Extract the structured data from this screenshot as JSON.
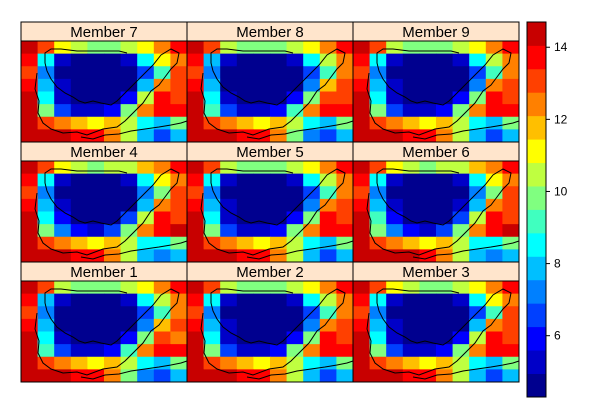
{
  "chart_data": {
    "type": "heatmap",
    "panel_titles": [
      "Member 7",
      "Member 8",
      "Member 9",
      "Member 4",
      "Member 5",
      "Member 6",
      "Member 1",
      "Member 2",
      "Member 3"
    ],
    "layout": {
      "rows": 3,
      "cols": 3
    },
    "grid_size": {
      "cols": 10,
      "rows": 8
    },
    "colorbar": {
      "min": 4.3,
      "max": 14.7,
      "step": 0.65,
      "ticks": [
        6,
        8,
        10,
        12,
        14
      ],
      "tick_labels": [
        "6",
        "8",
        "10",
        "12",
        "14"
      ],
      "colors": [
        "#00008F",
        "#0000C8",
        "#0000FF",
        "#0040FF",
        "#0080FF",
        "#00BFFF",
        "#00FFFF",
        "#40FFBF",
        "#80FF80",
        "#BFFF40",
        "#FFFF00",
        "#FFBF00",
        "#FF8000",
        "#FF4000",
        "#FF0000",
        "#C80000",
        "#800000"
      ]
    },
    "panel_values": [
      [
        [
          14.6,
          13.2,
          10.8,
          10.2,
          10.0,
          10.1,
          10.6,
          11.4,
          12.6,
          13.6
        ],
        [
          13.8,
          8.4,
          5.2,
          4.5,
          4.4,
          4.5,
          5.2,
          8.6,
          10.8,
          12.6
        ],
        [
          13.2,
          7.2,
          4.6,
          4.3,
          4.3,
          4.4,
          4.6,
          6.8,
          9.4,
          12.8
        ],
        [
          13.6,
          8.0,
          5.0,
          4.4,
          4.3,
          4.3,
          4.9,
          7.6,
          12.2,
          13.2
        ],
        [
          14.2,
          8.8,
          5.6,
          4.6,
          4.4,
          4.5,
          6.2,
          10.2,
          13.4,
          12.8
        ],
        [
          14.4,
          9.6,
          6.8,
          5.6,
          5.2,
          6.2,
          9.6,
          12.6,
          13.8,
          14.0
        ],
        [
          14.6,
          13.0,
          12.2,
          11.6,
          11.2,
          11.8,
          10.6,
          8.4,
          8.2,
          9.8
        ],
        [
          14.6,
          14.4,
          14.2,
          14.0,
          13.6,
          12.4,
          10.2,
          7.6,
          6.8,
          7.8
        ]
      ],
      [
        [
          14.6,
          13.0,
          10.6,
          10.0,
          9.9,
          10.0,
          10.5,
          11.3,
          12.5,
          13.5
        ],
        [
          13.8,
          8.2,
          5.0,
          4.5,
          4.4,
          4.5,
          5.1,
          8.4,
          10.6,
          12.5
        ],
        [
          13.2,
          7.0,
          4.5,
          4.3,
          4.3,
          4.4,
          4.6,
          6.6,
          9.2,
          12.6
        ],
        [
          13.6,
          7.8,
          4.9,
          4.4,
          4.3,
          4.3,
          4.8,
          7.4,
          12.0,
          13.1
        ],
        [
          14.1,
          8.6,
          5.5,
          4.6,
          4.4,
          4.5,
          6.0,
          10.0,
          13.3,
          12.8
        ],
        [
          14.4,
          9.4,
          6.6,
          5.5,
          5.1,
          6.0,
          9.4,
          12.5,
          13.7,
          13.9
        ],
        [
          14.6,
          12.9,
          12.1,
          11.5,
          11.1,
          11.7,
          10.5,
          8.3,
          8.1,
          9.7
        ],
        [
          14.6,
          14.4,
          14.1,
          13.9,
          13.5,
          12.3,
          10.1,
          7.5,
          6.7,
          7.7
        ]
      ],
      [
        [
          14.6,
          13.1,
          10.7,
          10.1,
          10.0,
          10.1,
          10.6,
          11.4,
          12.6,
          13.6
        ],
        [
          13.8,
          8.3,
          5.1,
          4.5,
          4.4,
          4.5,
          5.2,
          8.5,
          10.7,
          12.6
        ],
        [
          13.2,
          7.1,
          4.6,
          4.3,
          4.3,
          4.4,
          4.6,
          6.7,
          9.3,
          12.7
        ],
        [
          13.6,
          7.9,
          5.0,
          4.4,
          4.3,
          4.3,
          4.9,
          7.5,
          12.1,
          13.2
        ],
        [
          14.2,
          8.7,
          5.6,
          4.6,
          4.4,
          4.5,
          6.1,
          10.1,
          13.4,
          12.8
        ],
        [
          14.4,
          9.5,
          6.7,
          5.6,
          5.2,
          6.1,
          9.5,
          12.6,
          13.8,
          14.0
        ],
        [
          14.6,
          13.0,
          12.2,
          11.6,
          11.2,
          11.8,
          10.6,
          8.4,
          8.2,
          9.8
        ],
        [
          14.6,
          14.4,
          14.2,
          14.0,
          13.6,
          12.4,
          10.2,
          7.6,
          6.8,
          7.8
        ]
      ],
      [
        [
          14.6,
          13.2,
          10.8,
          10.2,
          10.1,
          10.2,
          10.7,
          11.5,
          12.7,
          13.6
        ],
        [
          13.8,
          8.4,
          5.2,
          4.5,
          4.4,
          4.5,
          5.3,
          8.7,
          10.9,
          12.7
        ],
        [
          13.3,
          7.2,
          4.6,
          4.3,
          4.3,
          4.4,
          4.7,
          6.9,
          9.5,
          12.8
        ],
        [
          13.7,
          8.0,
          5.0,
          4.4,
          4.3,
          4.3,
          4.9,
          7.7,
          12.3,
          13.3
        ],
        [
          14.2,
          8.8,
          5.7,
          4.6,
          4.4,
          4.5,
          6.3,
          10.3,
          13.5,
          12.9
        ],
        [
          14.5,
          9.7,
          6.9,
          5.7,
          5.3,
          6.3,
          9.7,
          12.7,
          13.9,
          14.1
        ],
        [
          14.6,
          13.1,
          12.3,
          11.7,
          11.3,
          11.9,
          10.7,
          8.5,
          8.3,
          9.9
        ],
        [
          14.6,
          14.5,
          14.2,
          14.0,
          13.7,
          12.5,
          10.3,
          7.7,
          6.9,
          7.9
        ]
      ],
      [
        [
          14.6,
          13.1,
          10.7,
          10.1,
          10.0,
          10.1,
          10.6,
          11.4,
          12.6,
          13.6
        ],
        [
          13.8,
          8.3,
          5.1,
          4.5,
          4.4,
          4.5,
          5.2,
          8.5,
          10.7,
          12.6
        ],
        [
          13.2,
          7.1,
          4.6,
          4.3,
          4.3,
          4.4,
          4.6,
          6.7,
          9.3,
          12.7
        ],
        [
          13.6,
          7.9,
          5.0,
          4.4,
          4.3,
          4.3,
          4.9,
          7.5,
          12.1,
          13.2
        ],
        [
          14.2,
          8.7,
          5.6,
          4.6,
          4.4,
          4.5,
          6.1,
          10.1,
          13.4,
          12.8
        ],
        [
          14.4,
          9.5,
          6.7,
          5.6,
          5.2,
          6.1,
          9.5,
          12.6,
          13.8,
          14.0
        ],
        [
          14.6,
          13.0,
          12.2,
          11.6,
          11.2,
          11.8,
          10.6,
          8.4,
          8.2,
          9.8
        ],
        [
          14.6,
          14.4,
          14.2,
          14.0,
          13.6,
          12.4,
          10.2,
          7.6,
          6.8,
          7.8
        ]
      ],
      [
        [
          14.6,
          13.3,
          10.9,
          10.3,
          10.1,
          10.2,
          10.7,
          11.5,
          12.7,
          13.7
        ],
        [
          13.9,
          8.5,
          5.3,
          4.5,
          4.4,
          4.5,
          5.3,
          8.7,
          10.9,
          12.7
        ],
        [
          13.3,
          7.3,
          4.7,
          4.3,
          4.3,
          4.4,
          4.7,
          6.9,
          9.5,
          12.9
        ],
        [
          13.7,
          8.1,
          5.1,
          4.4,
          4.3,
          4.3,
          5.0,
          7.7,
          12.3,
          13.3
        ],
        [
          14.3,
          8.9,
          5.7,
          4.7,
          4.4,
          4.5,
          6.3,
          10.3,
          13.5,
          12.9
        ],
        [
          14.5,
          9.7,
          6.9,
          5.7,
          5.3,
          6.3,
          9.7,
          12.7,
          13.9,
          14.1
        ],
        [
          14.6,
          13.1,
          12.3,
          11.7,
          11.3,
          11.9,
          10.7,
          8.5,
          8.3,
          9.9
        ],
        [
          14.6,
          14.5,
          14.3,
          14.1,
          13.7,
          12.5,
          10.3,
          7.7,
          6.9,
          7.9
        ]
      ],
      [
        [
          14.6,
          13.0,
          10.6,
          10.0,
          9.9,
          10.0,
          10.5,
          11.3,
          12.5,
          13.5
        ],
        [
          13.7,
          8.2,
          5.0,
          4.5,
          4.4,
          4.5,
          5.1,
          8.4,
          10.6,
          12.5
        ],
        [
          13.1,
          7.0,
          4.5,
          4.3,
          4.3,
          4.4,
          4.6,
          6.6,
          9.2,
          12.6
        ],
        [
          13.5,
          7.8,
          4.9,
          4.4,
          4.3,
          4.3,
          4.8,
          7.4,
          12.0,
          13.1
        ],
        [
          14.1,
          8.6,
          5.5,
          4.6,
          4.4,
          4.5,
          6.0,
          10.0,
          13.3,
          12.7
        ],
        [
          14.3,
          9.4,
          6.6,
          5.5,
          5.1,
          6.0,
          9.4,
          12.5,
          13.7,
          13.9
        ],
        [
          14.6,
          12.9,
          12.1,
          11.5,
          11.1,
          11.7,
          10.5,
          8.3,
          8.1,
          9.7
        ],
        [
          14.6,
          14.3,
          14.1,
          13.9,
          13.5,
          12.3,
          10.1,
          7.5,
          6.7,
          7.7
        ]
      ],
      [
        [
          14.6,
          13.1,
          10.7,
          10.1,
          10.0,
          10.1,
          10.6,
          11.4,
          12.6,
          13.6
        ],
        [
          13.8,
          8.3,
          5.1,
          4.5,
          4.4,
          4.5,
          5.2,
          8.5,
          10.7,
          12.6
        ],
        [
          13.2,
          7.1,
          4.6,
          4.3,
          4.3,
          4.4,
          4.6,
          6.7,
          9.3,
          12.7
        ],
        [
          13.6,
          7.9,
          5.0,
          4.4,
          4.3,
          4.3,
          4.9,
          7.5,
          12.1,
          13.2
        ],
        [
          14.2,
          8.7,
          5.6,
          4.6,
          4.4,
          4.5,
          6.1,
          10.1,
          13.4,
          12.8
        ],
        [
          14.4,
          9.5,
          6.7,
          5.6,
          5.2,
          6.1,
          9.5,
          12.6,
          13.8,
          14.0
        ],
        [
          14.6,
          13.0,
          12.2,
          11.6,
          11.2,
          11.8,
          10.6,
          8.4,
          8.2,
          9.8
        ],
        [
          14.6,
          14.4,
          14.2,
          14.0,
          13.6,
          12.4,
          10.2,
          7.6,
          6.8,
          7.8
        ]
      ],
      [
        [
          14.6,
          13.2,
          10.8,
          10.2,
          10.0,
          10.1,
          10.6,
          11.4,
          12.6,
          13.6
        ],
        [
          13.8,
          8.4,
          5.2,
          4.5,
          4.4,
          4.5,
          5.2,
          8.6,
          10.8,
          12.6
        ],
        [
          13.2,
          7.2,
          4.6,
          4.3,
          4.3,
          4.4,
          4.6,
          6.8,
          9.4,
          12.8
        ],
        [
          13.6,
          8.0,
          5.0,
          4.4,
          4.3,
          4.3,
          4.9,
          7.6,
          12.2,
          13.2
        ],
        [
          14.2,
          8.8,
          5.6,
          4.6,
          4.4,
          4.5,
          6.2,
          10.2,
          13.4,
          12.8
        ],
        [
          14.4,
          9.6,
          6.8,
          5.6,
          5.2,
          6.2,
          9.6,
          12.6,
          13.8,
          14.0
        ],
        [
          14.6,
          13.0,
          12.2,
          11.6,
          11.2,
          11.8,
          10.6,
          8.4,
          8.2,
          9.8
        ],
        [
          14.6,
          14.4,
          14.2,
          14.0,
          13.6,
          12.4,
          10.2,
          7.6,
          6.8,
          7.8
        ]
      ]
    ]
  },
  "style": {
    "strip_background": "#FFE5CC",
    "frame_color": "#000000",
    "coastline_color": "#000000"
  }
}
